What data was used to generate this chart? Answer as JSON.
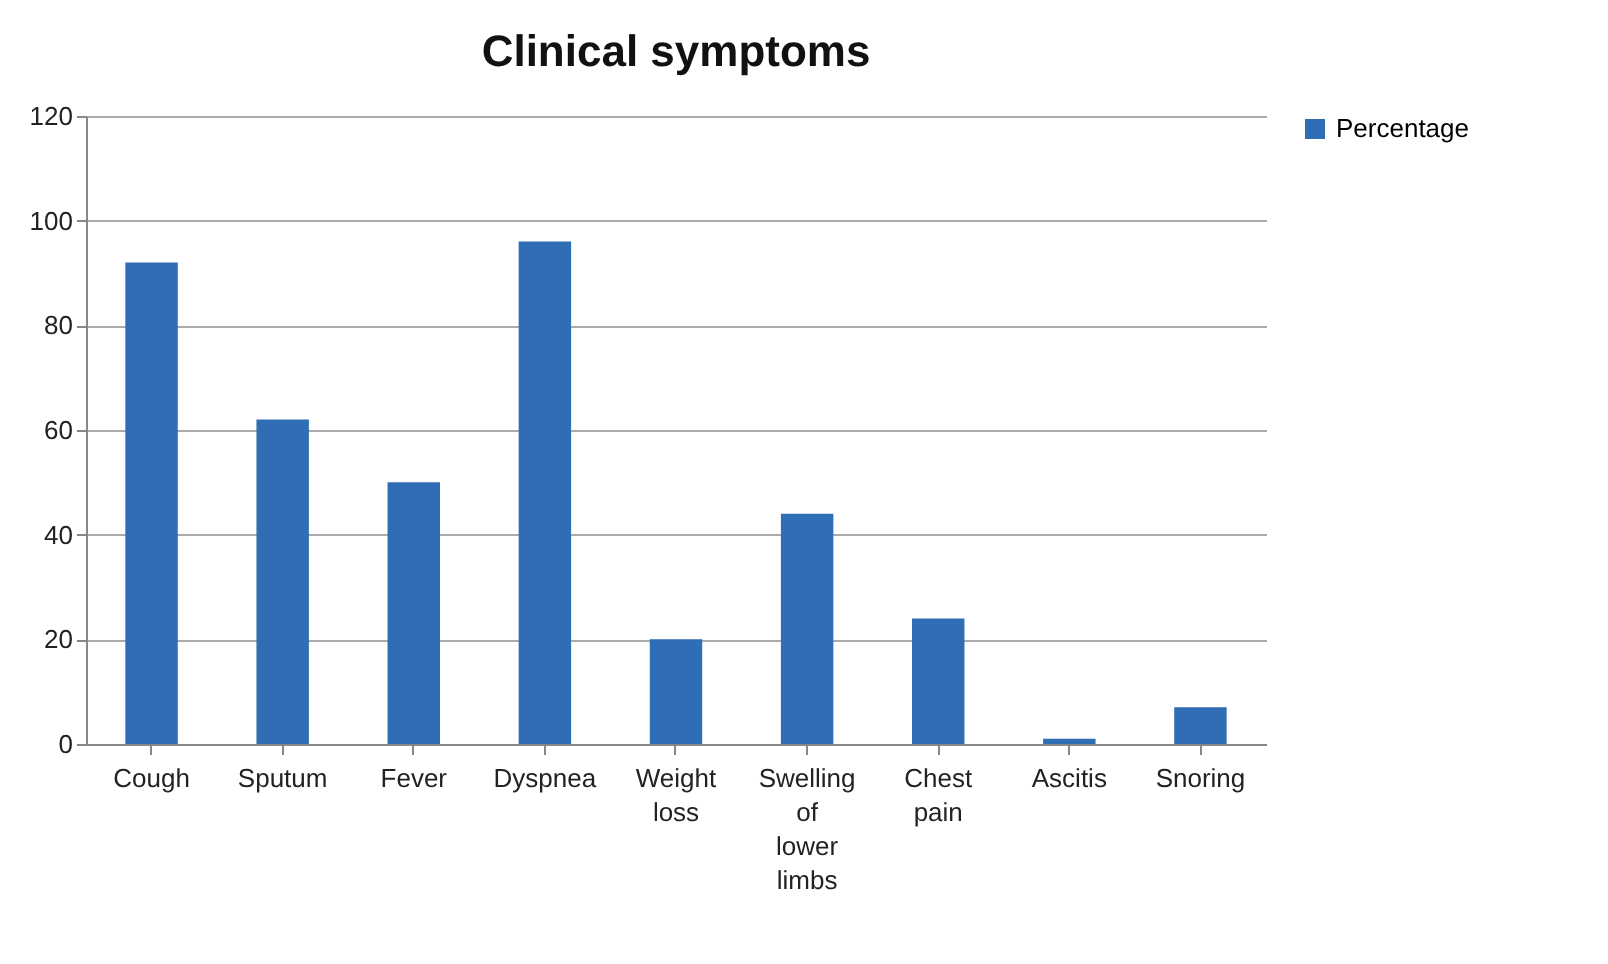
{
  "chart_data": {
    "type": "bar",
    "title": "Clinical symptoms",
    "categories": [
      "Cough",
      "Sputum",
      "Fever",
      "Dyspnea",
      "Weight loss",
      "Swelling of lower limbs",
      "Chest pain",
      "Ascitis",
      "Snoring"
    ],
    "series": [
      {
        "name": "Percentage",
        "color": "#2f6db5",
        "values": [
          92,
          62,
          50,
          96,
          20,
          44,
          24,
          1,
          7
        ]
      }
    ],
    "ylim": [
      0,
      120
    ],
    "yticks": [
      0,
      20,
      40,
      60,
      80,
      100,
      120
    ],
    "grid": "y",
    "legend": "right"
  }
}
